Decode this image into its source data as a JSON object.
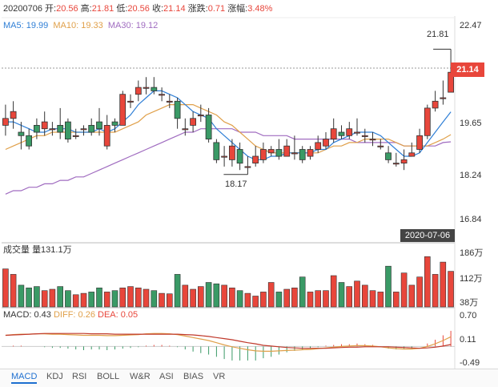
{
  "header": {
    "date": "20200706",
    "open_label": "开:",
    "open": "20.56",
    "high_label": "高:",
    "high": "21.81",
    "low_label": "低:",
    "low": "20.56",
    "close_label": "收:",
    "close": "21.14",
    "change_label": "涨跌:",
    "change": "0.71",
    "pct_label": "涨幅:",
    "pct": "3.48%"
  },
  "ma_legend": {
    "ma5": "MA5: 19.99",
    "ma10": "MA10: 19.33",
    "ma30": "MA30: 19.12"
  },
  "price_axis": [
    "22.47",
    "21.14",
    "19.65",
    "18.24",
    "16.84"
  ],
  "current_price": "21.14",
  "current_date": "2020-07-06",
  "annot_high": "21.81",
  "annot_low": "18.17",
  "volume_legend": {
    "label": "成交量",
    "value": "量131.1万"
  },
  "volume_axis": [
    "186万",
    "112万",
    "38万"
  ],
  "macd_legend": {
    "macd": "MACD: 0.43",
    "diff": "DIFF: 0.26",
    "dea": "DEA: 0.05"
  },
  "macd_axis": [
    "0.70",
    "0.11",
    "-0.49"
  ],
  "tabs": [
    "MACD",
    "KDJ",
    "RSI",
    "BOLL",
    "W&R",
    "ASI",
    "BIAS",
    "VR"
  ],
  "colors": {
    "up": "#e8463b",
    "down": "#3a9a66",
    "ma5": "#2f7fd6",
    "ma10": "#e0a04a",
    "ma30": "#a06cc0"
  },
  "chart_data": {
    "type": "candlestick",
    "ylim": [
      16.84,
      22.47
    ],
    "candles": [
      [
        19.6,
        19.8,
        20.2,
        19.3
      ],
      [
        19.8,
        20.0,
        20.3,
        19.5
      ],
      [
        19.4,
        19.3,
        19.7,
        18.9
      ],
      [
        19.3,
        19.0,
        19.5,
        18.9
      ],
      [
        19.6,
        19.4,
        19.8,
        19.2
      ],
      [
        19.5,
        19.7,
        20.0,
        19.3
      ],
      [
        19.5,
        19.5,
        19.7,
        19.3
      ],
      [
        19.6,
        19.4,
        20.1,
        19.2
      ],
      [
        19.7,
        19.2,
        19.8,
        19.1
      ],
      [
        19.3,
        19.3,
        19.5,
        19.2
      ],
      [
        19.5,
        19.5,
        19.6,
        19.3
      ],
      [
        19.6,
        19.4,
        19.8,
        19.3
      ],
      [
        19.7,
        19.5,
        20.1,
        19.3
      ],
      [
        19.0,
        19.6,
        19.9,
        18.9
      ],
      [
        19.7,
        19.6,
        19.8,
        19.4
      ],
      [
        19.6,
        20.5,
        20.6,
        19.6
      ],
      [
        20.3,
        20.3,
        20.5,
        20.1
      ],
      [
        20.5,
        20.7,
        20.9,
        20.3
      ],
      [
        20.7,
        20.7,
        21.0,
        20.5
      ],
      [
        20.7,
        20.6,
        21.0,
        20.5
      ],
      [
        20.5,
        20.5,
        20.7,
        20.3
      ],
      [
        20.3,
        20.3,
        20.5,
        20.1
      ],
      [
        20.3,
        19.8,
        20.4,
        19.5
      ],
      [
        19.5,
        19.5,
        19.8,
        19.3
      ],
      [
        19.6,
        19.8,
        20.0,
        19.4
      ],
      [
        19.9,
        19.9,
        20.2,
        19.7
      ],
      [
        19.9,
        19.2,
        20.1,
        19.1
      ],
      [
        19.1,
        18.6,
        19.2,
        18.5
      ],
      [
        18.7,
        18.7,
        19.0,
        18.4
      ],
      [
        18.6,
        19.0,
        19.2,
        18.4
      ],
      [
        18.9,
        18.5,
        19.1,
        18.3
      ],
      [
        18.4,
        18.4,
        18.7,
        18.17
      ],
      [
        18.5,
        18.7,
        19.0,
        18.4
      ],
      [
        18.6,
        18.9,
        19.1,
        18.5
      ],
      [
        18.8,
        18.9,
        19.0,
        18.7
      ],
      [
        18.9,
        18.7,
        19.2,
        18.6
      ],
      [
        18.7,
        19.0,
        19.2,
        18.7
      ],
      [
        18.8,
        18.8,
        19.3,
        18.6
      ],
      [
        18.9,
        18.6,
        19.0,
        18.5
      ],
      [
        18.7,
        18.9,
        19.0,
        18.6
      ],
      [
        18.9,
        19.1,
        19.3,
        18.8
      ],
      [
        19.0,
        19.2,
        19.4,
        18.9
      ],
      [
        19.2,
        19.5,
        19.8,
        19.1
      ],
      [
        19.4,
        19.3,
        19.6,
        19.2
      ],
      [
        19.3,
        19.5,
        19.7,
        19.2
      ],
      [
        19.4,
        19.4,
        19.8,
        19.3
      ],
      [
        19.3,
        19.3,
        19.5,
        19.1
      ],
      [
        19.2,
        19.2,
        19.4,
        19.0
      ],
      [
        19.0,
        19.0,
        19.2,
        18.9
      ],
      [
        18.8,
        18.6,
        19.0,
        18.5
      ],
      [
        18.5,
        18.5,
        18.8,
        18.4
      ],
      [
        18.5,
        18.6,
        18.9,
        18.3
      ],
      [
        18.7,
        18.8,
        19.1,
        18.7
      ],
      [
        18.9,
        19.3,
        19.5,
        18.8
      ],
      [
        19.3,
        20.1,
        20.2,
        19.2
      ],
      [
        20.1,
        20.3,
        20.6,
        20.0
      ],
      [
        20.4,
        20.4,
        20.9,
        20.2
      ],
      [
        20.56,
        21.14,
        21.81,
        20.56
      ]
    ],
    "ma5": [
      19.7,
      19.7,
      19.6,
      19.5,
      19.4,
      19.4,
      19.5,
      19.5,
      19.5,
      19.4,
      19.4,
      19.4,
      19.5,
      19.4,
      19.5,
      19.7,
      19.9,
      20.2,
      20.4,
      20.6,
      20.6,
      20.5,
      20.4,
      20.2,
      20.0,
      19.9,
      19.8,
      19.5,
      19.3,
      19.1,
      18.9,
      18.7,
      18.6,
      18.6,
      18.7,
      18.7,
      18.8,
      18.8,
      18.8,
      18.8,
      18.9,
      18.9,
      19.1,
      19.2,
      19.3,
      19.4,
      19.4,
      19.4,
      19.3,
      19.1,
      18.9,
      18.7,
      18.7,
      18.8,
      19.1,
      19.4,
      19.7,
      19.99
    ],
    "ma10": [
      18.9,
      19.0,
      19.1,
      19.2,
      19.3,
      19.3,
      19.4,
      19.4,
      19.4,
      19.4,
      19.4,
      19.4,
      19.4,
      19.4,
      19.4,
      19.5,
      19.6,
      19.7,
      19.9,
      20.0,
      20.1,
      20.2,
      20.2,
      20.2,
      20.2,
      20.1,
      20.0,
      19.9,
      19.7,
      19.6,
      19.4,
      19.2,
      19.0,
      18.9,
      18.8,
      18.8,
      18.8,
      18.8,
      18.8,
      18.8,
      18.8,
      18.9,
      19.0,
      19.0,
      19.1,
      19.1,
      19.2,
      19.2,
      19.2,
      19.2,
      19.1,
      19.0,
      19.0,
      19.0,
      19.0,
      19.1,
      19.2,
      19.33
    ],
    "ma30": [
      17.6,
      17.7,
      17.7,
      17.8,
      17.8,
      17.9,
      17.9,
      18.0,
      18.0,
      18.1,
      18.1,
      18.2,
      18.3,
      18.4,
      18.5,
      18.6,
      18.7,
      18.8,
      18.9,
      19.0,
      19.1,
      19.2,
      19.3,
      19.4,
      19.4,
      19.5,
      19.5,
      19.5,
      19.5,
      19.5,
      19.4,
      19.4,
      19.4,
      19.3,
      19.3,
      19.3,
      19.3,
      19.2,
      19.2,
      19.2,
      19.2,
      19.2,
      19.2,
      19.2,
      19.2,
      19.1,
      19.1,
      19.1,
      19.1,
      19.1,
      19.1,
      19.0,
      19.0,
      19.0,
      19.0,
      19.0,
      19.1,
      19.12
    ],
    "volume": {
      "ylim": [
        0,
        186
      ],
      "values": [
        140,
        120,
        80,
        70,
        75,
        60,
        65,
        75,
        60,
        45,
        50,
        55,
        70,
        55,
        60,
        70,
        75,
        70,
        65,
        60,
        50,
        48,
        120,
        80,
        65,
        75,
        90,
        85,
        80,
        70,
        60,
        50,
        40,
        55,
        90,
        55,
        65,
        70,
        110,
        55,
        60,
        60,
        115,
        90,
        75,
        95,
        80,
        60,
        55,
        150,
        55,
        125,
        80,
        110,
        185,
        120,
        165,
        131.1
      ]
    },
    "macd": {
      "ylim": [
        -0.49,
        0.7
      ],
      "diff": [
        0.3,
        0.32,
        0.33,
        0.33,
        0.34,
        0.34,
        0.33,
        0.33,
        0.32,
        0.31,
        0.3,
        0.3,
        0.3,
        0.29,
        0.29,
        0.3,
        0.31,
        0.32,
        0.34,
        0.35,
        0.35,
        0.34,
        0.32,
        0.28,
        0.24,
        0.2,
        0.16,
        0.1,
        0.04,
        -0.01,
        -0.05,
        -0.09,
        -0.12,
        -0.13,
        -0.13,
        -0.12,
        -0.11,
        -0.1,
        -0.09,
        -0.08,
        -0.06,
        -0.04,
        -0.02,
        0.0,
        0.01,
        0.02,
        0.02,
        0.01,
        -0.01,
        -0.04,
        -0.06,
        -0.07,
        -0.07,
        -0.05,
        0.0,
        0.07,
        0.16,
        0.26
      ],
      "dea": [
        0.3,
        0.31,
        0.32,
        0.33,
        0.34,
        0.35,
        0.35,
        0.35,
        0.35,
        0.35,
        0.35,
        0.34,
        0.34,
        0.34,
        0.33,
        0.33,
        0.33,
        0.33,
        0.33,
        0.33,
        0.33,
        0.33,
        0.33,
        0.32,
        0.31,
        0.29,
        0.27,
        0.24,
        0.21,
        0.18,
        0.14,
        0.1,
        0.07,
        0.03,
        0.01,
        -0.01,
        -0.03,
        -0.04,
        -0.05,
        -0.05,
        -0.05,
        -0.05,
        -0.04,
        -0.03,
        -0.02,
        -0.02,
        -0.01,
        -0.01,
        -0.01,
        -0.01,
        -0.02,
        -0.03,
        -0.04,
        -0.05,
        -0.04,
        -0.02,
        0.01,
        0.05
      ]
    }
  }
}
